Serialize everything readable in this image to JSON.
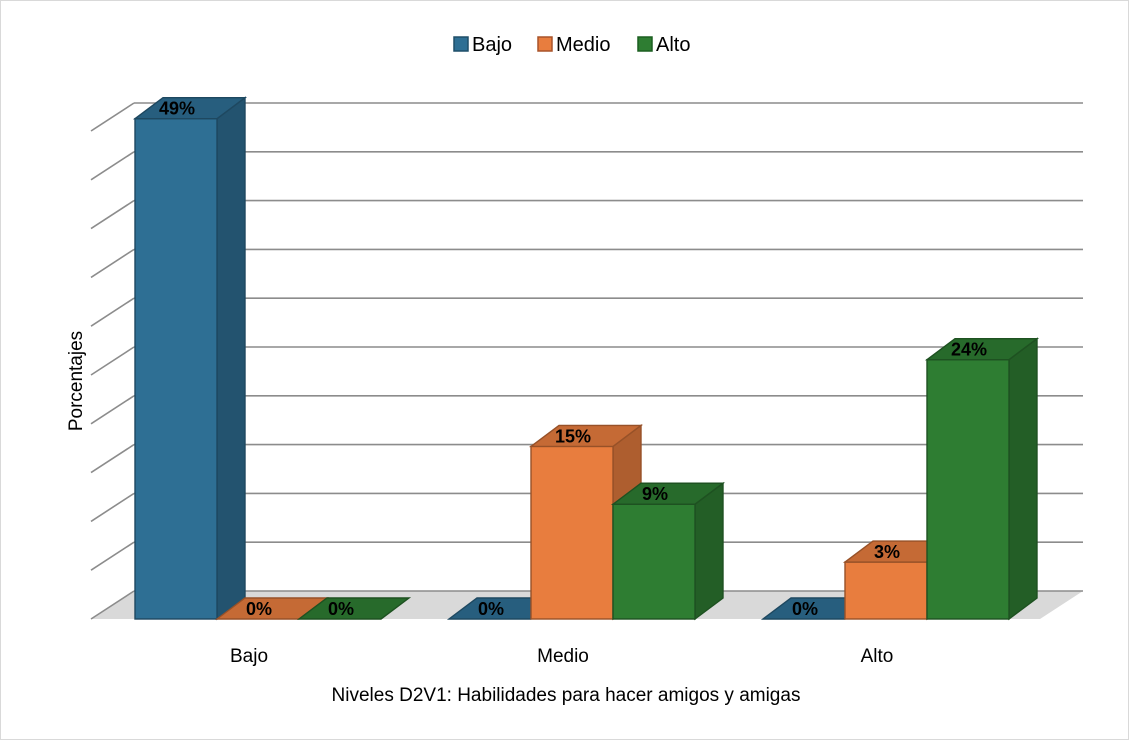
{
  "chart_data": {
    "type": "bar",
    "categories": [
      "Bajo",
      "Medio",
      "Alto"
    ],
    "series": [
      {
        "name": "Bajo",
        "values": [
          49,
          0,
          0
        ],
        "color": "#2e6f94"
      },
      {
        "name": "Medio",
        "values": [
          0,
          15,
          3
        ],
        "color": "#e87d3e"
      },
      {
        "name": "Alto",
        "values": [
          0,
          9,
          24
        ],
        "color": "#2e7d32"
      }
    ],
    "data_labels": [
      [
        "49%",
        "0%",
        "0%"
      ],
      [
        "0%",
        "15%",
        "3%"
      ],
      [
        "0%",
        "9%",
        "24%"
      ]
    ],
    "xlabel": "Niveles D2V1: Habilidades para hacer amigos y amigas",
    "ylabel": "Porcentajes",
    "ylim": [
      0,
      50
    ],
    "gridlines": 11,
    "legend_position": "top",
    "style": "3d-clustered-column"
  }
}
